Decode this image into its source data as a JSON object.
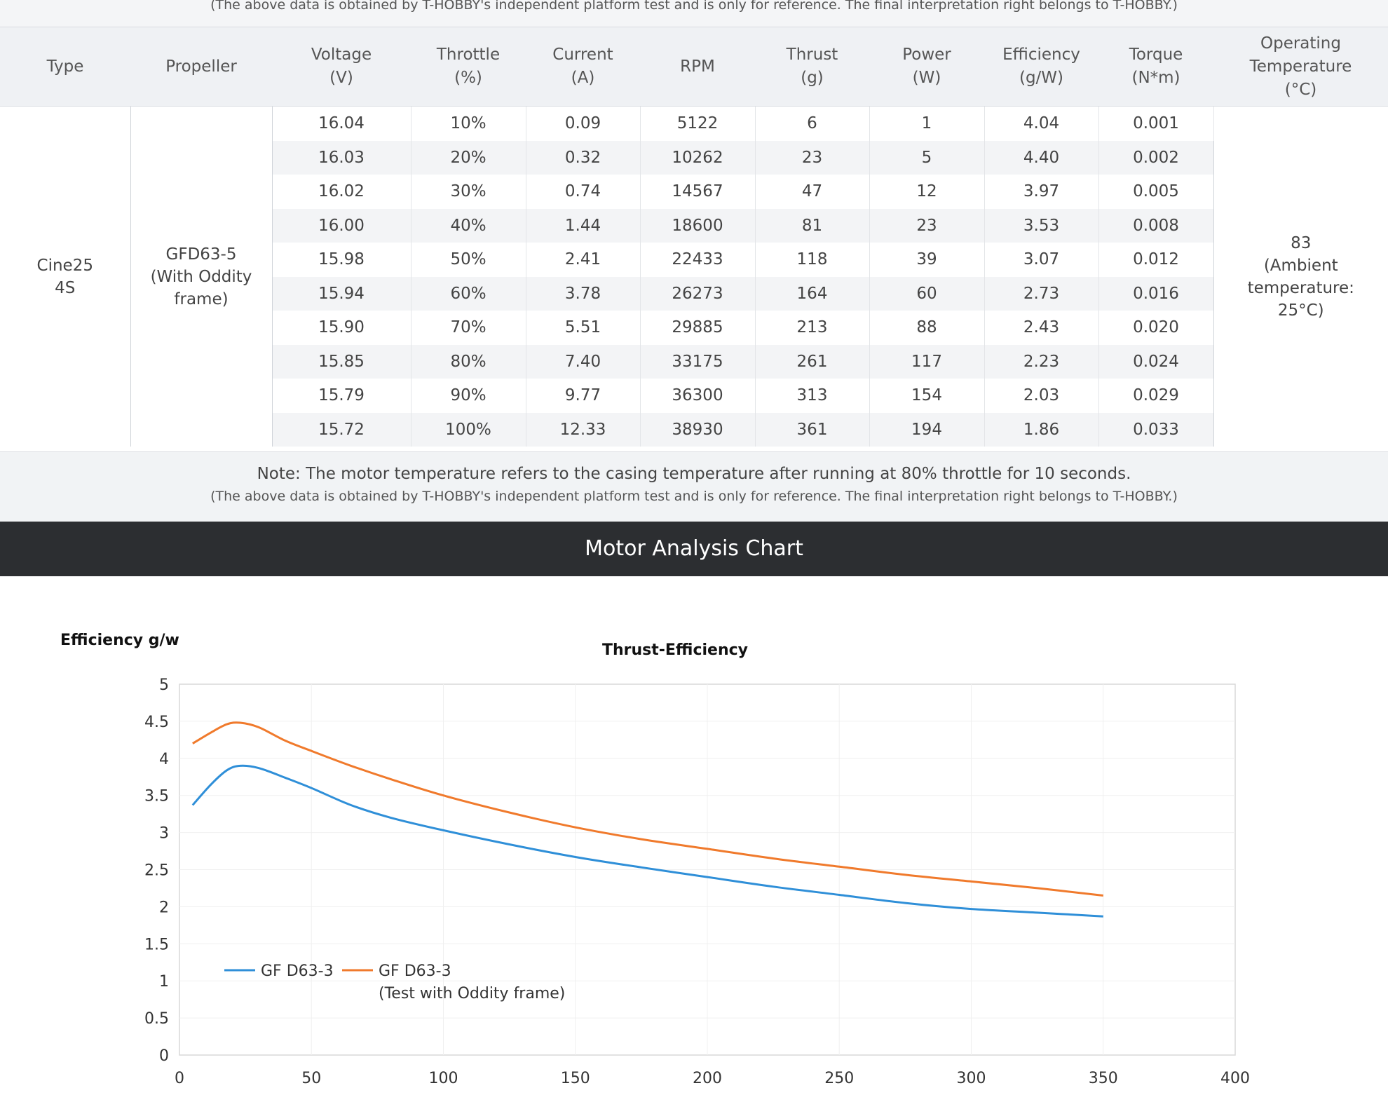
{
  "top_note": "(The above data is obtained by T-HOBBY's independent platform test and is only for reference. The final interpretation right belongs to T-HOBBY.)",
  "table": {
    "headers": [
      "Type",
      "Propeller",
      "Voltage\n(V)",
      "Throttle\n(%)",
      "Current\n(A)",
      "RPM",
      "Thrust\n(g)",
      "Power\n(W)",
      "Efficiency\n(g/W)",
      "Torque\n(N*m)",
      "Operating\nTemperature\n(°C)"
    ],
    "type": "Cine25\n4S",
    "propeller": "GFD63-5\n(With Oddity\nframe)",
    "temperature": "83\n(Ambient\ntemperature:\n25°C)",
    "rows": [
      [
        "16.04",
        "10%",
        "0.09",
        "5122",
        "6",
        "1",
        "4.04",
        "0.001"
      ],
      [
        "16.03",
        "20%",
        "0.32",
        "10262",
        "23",
        "5",
        "4.40",
        "0.002"
      ],
      [
        "16.02",
        "30%",
        "0.74",
        "14567",
        "47",
        "12",
        "3.97",
        "0.005"
      ],
      [
        "16.00",
        "40%",
        "1.44",
        "18600",
        "81",
        "23",
        "3.53",
        "0.008"
      ],
      [
        "15.98",
        "50%",
        "2.41",
        "22433",
        "118",
        "39",
        "3.07",
        "0.012"
      ],
      [
        "15.94",
        "60%",
        "3.78",
        "26273",
        "164",
        "60",
        "2.73",
        "0.016"
      ],
      [
        "15.90",
        "70%",
        "5.51",
        "29885",
        "213",
        "88",
        "2.43",
        "0.020"
      ],
      [
        "15.85",
        "80%",
        "7.40",
        "33175",
        "261",
        "117",
        "2.23",
        "0.024"
      ],
      [
        "15.79",
        "90%",
        "9.77",
        "36300",
        "313",
        "154",
        "2.03",
        "0.029"
      ],
      [
        "15.72",
        "100%",
        "12.33",
        "38930",
        "361",
        "194",
        "1.86",
        "0.033"
      ]
    ]
  },
  "note_main": "Note: The motor temperature refers to the casing temperature after running at 80% throttle for 10 seconds.",
  "note_sub": "(The above data is obtained by T-HOBBY's independent platform test and is only for reference. The final interpretation right belongs to T-HOBBY.)",
  "banner_title": "Motor Analysis Chart",
  "chart_data": {
    "type": "line",
    "title": "Thrust-Efficiency",
    "ylabel": "Efficiency g/w",
    "xlabel": "",
    "xlim": [
      0,
      400
    ],
    "ylim": [
      0,
      5
    ],
    "xticks": [
      0,
      50,
      100,
      150,
      200,
      250,
      300,
      350,
      400
    ],
    "yticks": [
      0,
      0.5,
      1,
      1.5,
      2,
      2.5,
      3,
      3.5,
      4,
      4.5,
      5
    ],
    "grid": true,
    "legend_position": "bottom-left",
    "series": [
      {
        "name": "GF D63-3",
        "color": "#2f8fd8",
        "x": [
          5,
          12,
          18,
          23,
          30,
          40,
          50,
          65,
          80,
          100,
          125,
          150,
          175,
          200,
          225,
          250,
          275,
          300,
          325,
          350
        ],
        "y": [
          3.37,
          3.65,
          3.84,
          3.9,
          3.87,
          3.74,
          3.6,
          3.37,
          3.2,
          3.03,
          2.84,
          2.67,
          2.53,
          2.4,
          2.27,
          2.16,
          2.05,
          1.97,
          1.92,
          1.87
        ]
      },
      {
        "name": "GF D63-3\n(Test with Oddity frame)",
        "color": "#f07a2c",
        "x": [
          5,
          12,
          18,
          23,
          30,
          40,
          50,
          65,
          80,
          100,
          125,
          150,
          175,
          200,
          225,
          250,
          275,
          300,
          325,
          350
        ],
        "y": [
          4.2,
          4.35,
          4.46,
          4.48,
          4.42,
          4.24,
          4.1,
          3.9,
          3.72,
          3.5,
          3.27,
          3.07,
          2.91,
          2.78,
          2.65,
          2.54,
          2.43,
          2.34,
          2.25,
          2.15
        ]
      }
    ]
  }
}
